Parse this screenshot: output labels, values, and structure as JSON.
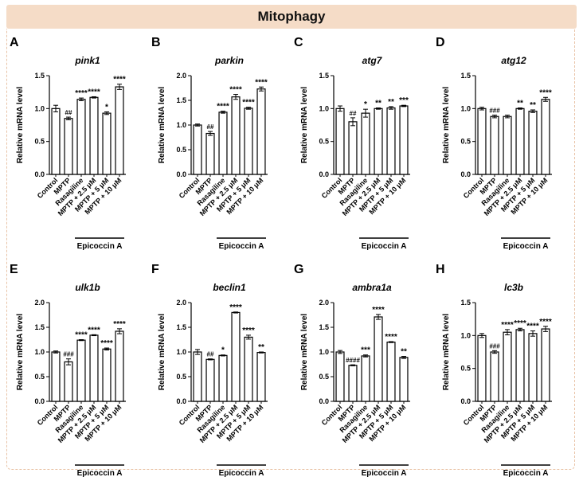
{
  "title": "Mitophagy",
  "group_label": "Epicoccin A",
  "y_axis_label": "Relative mRNA level",
  "categories": [
    "Control",
    "MPTP",
    "Rasagiline",
    "MPTP + 2.5 μM",
    "MPTP + 5 μM",
    "MPTP + 10 μM"
  ],
  "colors": {
    "band": "#f5dcc7",
    "frame": "#e9c4a8",
    "ink": "#000000"
  },
  "chart_data": [
    {
      "type": "bar",
      "panel": "A",
      "title": "pink1",
      "ylabel": "Relative mRNA level",
      "ylim": [
        0,
        1.5
      ],
      "yticks": [
        "0.0",
        "0.5",
        "1.0",
        "1.5"
      ],
      "categories": [
        "Control",
        "MPTP",
        "Rasagiline",
        "MPTP + 2.5 μM",
        "MPTP + 5 μM",
        "MPTP + 10 μM"
      ],
      "values": [
        1.0,
        0.85,
        1.14,
        1.17,
        0.93,
        1.33
      ],
      "errors": [
        0.05,
        0.02,
        0.02,
        0.01,
        0.02,
        0.04
      ],
      "annotations": [
        "",
        "##",
        "****",
        "****",
        "*",
        "****"
      ]
    },
    {
      "type": "bar",
      "panel": "B",
      "title": "parkin",
      "ylabel": "Relative mRNA level",
      "ylim": [
        0,
        2.0
      ],
      "yticks": [
        "0.0",
        "0.5",
        "1.0",
        "1.5",
        "2.0"
      ],
      "categories": [
        "Control",
        "MPTP",
        "Rasagiline",
        "MPTP + 2.5 μM",
        "MPTP + 5 μM",
        "MPTP + 10 μM"
      ],
      "values": [
        1.0,
        0.83,
        1.26,
        1.57,
        1.34,
        1.73
      ],
      "errors": [
        0.02,
        0.04,
        0.02,
        0.05,
        0.02,
        0.04
      ],
      "annotations": [
        "",
        "##",
        "****",
        "****",
        "****",
        "****"
      ]
    },
    {
      "type": "bar",
      "panel": "C",
      "title": "atg7",
      "ylabel": "Relative mRNA level",
      "ylim": [
        0,
        1.5
      ],
      "yticks": [
        "0.0",
        "0.5",
        "1.0",
        "1.5"
      ],
      "categories": [
        "Control",
        "MPTP",
        "Rasagiline",
        "MPTP + 2.5 μM",
        "MPTP + 5 μM",
        "MPTP + 10 μM"
      ],
      "values": [
        1.0,
        0.8,
        0.93,
        1.0,
        1.01,
        1.04
      ],
      "errors": [
        0.04,
        0.06,
        0.06,
        0.01,
        0.02,
        0.01
      ],
      "annotations": [
        "",
        "##",
        "*",
        "**",
        "**",
        "***"
      ]
    },
    {
      "type": "bar",
      "panel": "D",
      "title": "atg12",
      "ylabel": "Relative mRNA level",
      "ylim": [
        0,
        1.5
      ],
      "yticks": [
        "0.0",
        "0.5",
        "1.0",
        "1.5"
      ],
      "categories": [
        "Control",
        "MPTP",
        "Rasagiline",
        "MPTP + 2.5 μM",
        "MPTP + 5 μM",
        "MPTP + 10 μM"
      ],
      "values": [
        1.0,
        0.88,
        0.88,
        1.0,
        0.96,
        1.14
      ],
      "errors": [
        0.02,
        0.02,
        0.02,
        0.01,
        0.02,
        0.03
      ],
      "annotations": [
        "",
        "###",
        "",
        "**",
        "**",
        "****"
      ]
    },
    {
      "type": "bar",
      "panel": "E",
      "title": "ulk1b",
      "ylabel": "Relative mRNA level",
      "ylim": [
        0,
        2.0
      ],
      "yticks": [
        "0.0",
        "0.5",
        "1.0",
        "1.5",
        "2.0"
      ],
      "categories": [
        "Control",
        "MPTP",
        "Rasagiline",
        "MPTP + 2.5 μM",
        "MPTP + 5 μM",
        "MPTP + 10 μM"
      ],
      "values": [
        1.0,
        0.8,
        1.24,
        1.34,
        1.06,
        1.42
      ],
      "errors": [
        0.02,
        0.06,
        0.01,
        0.01,
        0.02,
        0.05
      ],
      "annotations": [
        "",
        "###",
        "****",
        "****",
        "****",
        "****"
      ]
    },
    {
      "type": "bar",
      "panel": "F",
      "title": "beclin1",
      "ylabel": "Relative mRNA level",
      "ylim": [
        0,
        2.0
      ],
      "yticks": [
        "0.0",
        "0.5",
        "1.0",
        "1.5",
        "2.0"
      ],
      "categories": [
        "Control",
        "MPTP",
        "Rasagiline",
        "MPTP + 2.5 μM",
        "MPTP + 5 μM",
        "MPTP + 10 μM"
      ],
      "values": [
        1.0,
        0.85,
        0.93,
        1.8,
        1.3,
        0.99
      ],
      "errors": [
        0.05,
        0.01,
        0.01,
        0.01,
        0.04,
        0.01
      ],
      "annotations": [
        "",
        "##",
        "*",
        "****",
        "****",
        "**"
      ]
    },
    {
      "type": "bar",
      "panel": "G",
      "title": "ambra1a",
      "ylabel": "Relative mRNA level",
      "ylim": [
        0,
        2.0
      ],
      "yticks": [
        "0.0",
        "0.5",
        "1.0",
        "1.5",
        "2.0"
      ],
      "categories": [
        "Control",
        "MPTP",
        "Rasagiline",
        "MPTP + 2.5 μM",
        "MPTP + 5 μM",
        "MPTP + 10 μM"
      ],
      "values": [
        1.0,
        0.73,
        0.92,
        1.71,
        1.2,
        0.89
      ],
      "errors": [
        0.03,
        0.01,
        0.02,
        0.05,
        0.01,
        0.02
      ],
      "annotations": [
        "",
        "####",
        "***",
        "****",
        "****",
        "**"
      ]
    },
    {
      "type": "bar",
      "panel": "H",
      "title": "lc3b",
      "ylabel": "Relative mRNA level",
      "ylim": [
        0,
        1.5
      ],
      "yticks": [
        "0.0",
        "0.5",
        "1.0",
        "1.5"
      ],
      "categories": [
        "Control",
        "MPTP",
        "Rasagiline",
        "MPTP + 2.5 μM",
        "MPTP + 5 μM",
        "MPTP + 10 μM"
      ],
      "values": [
        1.0,
        0.75,
        1.05,
        1.09,
        1.03,
        1.1
      ],
      "errors": [
        0.03,
        0.02,
        0.04,
        0.02,
        0.04,
        0.04
      ],
      "annotations": [
        "",
        "###",
        "****",
        "****",
        "****",
        "****"
      ]
    }
  ]
}
